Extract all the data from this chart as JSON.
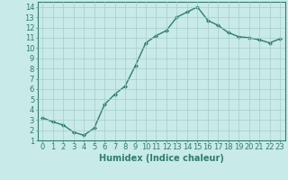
{
  "x": [
    0,
    1,
    2,
    3,
    4,
    5,
    6,
    7,
    8,
    9,
    10,
    11,
    12,
    13,
    14,
    15,
    16,
    17,
    18,
    19,
    20,
    21,
    22,
    23
  ],
  "y": [
    3.2,
    2.8,
    2.5,
    1.8,
    1.5,
    2.2,
    4.5,
    5.5,
    6.3,
    8.3,
    10.5,
    11.2,
    11.7,
    13.0,
    13.5,
    14.0,
    12.7,
    12.2,
    11.5,
    11.1,
    11.0,
    10.8,
    10.5,
    10.9
  ],
  "line_color": "#2e7d6e",
  "marker": "D",
  "marker_size": 2.0,
  "bg_color": "#c8eae8",
  "grid_color": "#a8ccc9",
  "xlabel": "Humidex (Indice chaleur)",
  "xlim": [
    -0.5,
    23.5
  ],
  "ylim": [
    1,
    14.5
  ],
  "yticks": [
    1,
    2,
    3,
    4,
    5,
    6,
    7,
    8,
    9,
    10,
    11,
    12,
    13,
    14
  ],
  "xticks": [
    0,
    1,
    2,
    3,
    4,
    5,
    6,
    7,
    8,
    9,
    10,
    11,
    12,
    13,
    14,
    15,
    16,
    17,
    18,
    19,
    20,
    21,
    22,
    23
  ],
  "xlabel_fontsize": 7,
  "tick_fontsize": 6,
  "line_width": 1.0
}
